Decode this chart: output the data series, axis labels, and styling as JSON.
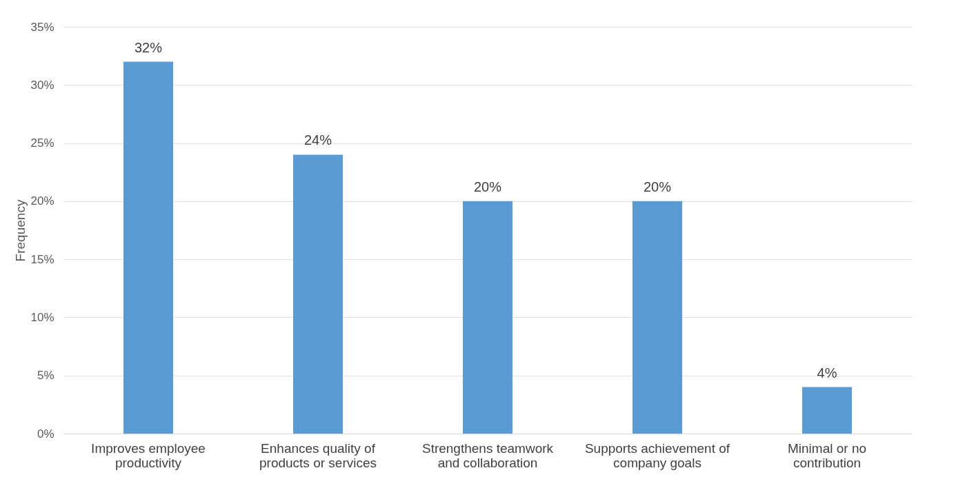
{
  "chart_data": {
    "type": "bar",
    "ylabel": "Frequency",
    "categories": [
      "Improves employee productivity",
      "Enhances quality of products or services",
      "Strengthens teamwork and collaboration",
      "Supports achievement of company goals",
      "Minimal or no contribution"
    ],
    "values": [
      32,
      24,
      20,
      20,
      4
    ],
    "value_labels": [
      "32%",
      "24%",
      "20%",
      "20%",
      "4%"
    ],
    "color": "#5b9bd5",
    "ylim": [
      0,
      35
    ],
    "yticks": [
      {
        "value": 0,
        "label": "0%"
      },
      {
        "value": 5,
        "label": "5%"
      },
      {
        "value": 10,
        "label": "10%"
      },
      {
        "value": 15,
        "label": "15%"
      },
      {
        "value": 20,
        "label": "20%"
      },
      {
        "value": 25,
        "label": "25%"
      },
      {
        "value": 30,
        "label": "30%"
      },
      {
        "value": 35,
        "label": "35%"
      }
    ],
    "grid": "y"
  }
}
